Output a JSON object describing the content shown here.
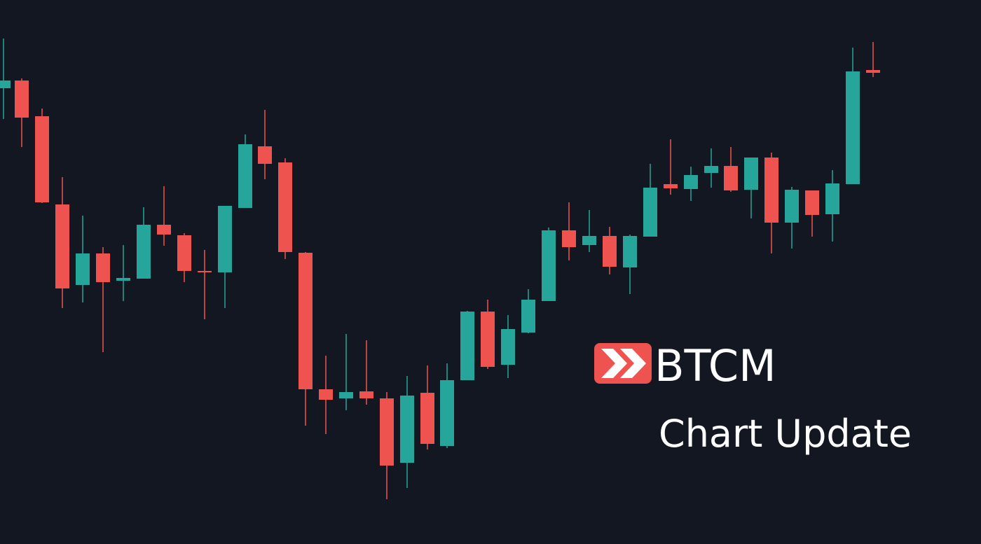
{
  "brand": {
    "name": "BTCM"
  },
  "headline": "Chart Update"
}
